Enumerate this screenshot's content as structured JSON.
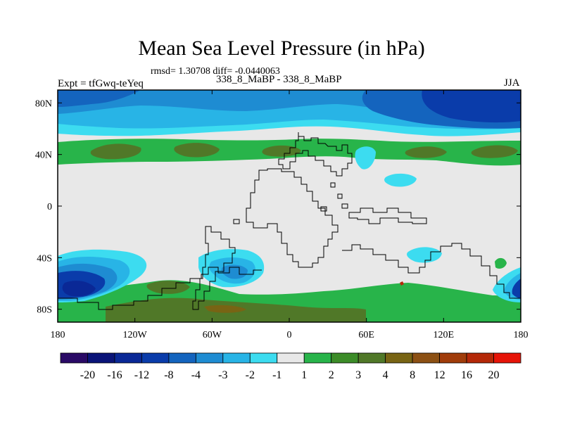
{
  "title": "Mean Sea Level Pressure (in hPa)",
  "stats": "rmsd= 1.30708 diff= -0.0440063",
  "experiment": "Expt = tfGwq-teYeq",
  "subtitle": "338_8_MaBP - 338_8_MaBP",
  "season": "JJA",
  "x_axis": {
    "range": [
      -180,
      180
    ],
    "ticks": [
      {
        "value": -180,
        "label": "180"
      },
      {
        "value": -120,
        "label": "120W"
      },
      {
        "value": -60,
        "label": "60W"
      },
      {
        "value": 0,
        "label": "0"
      },
      {
        "value": 60,
        "label": "60E"
      },
      {
        "value": 120,
        "label": "120E"
      },
      {
        "value": 180,
        "label": "180"
      }
    ]
  },
  "y_axis": {
    "range": [
      -90,
      90
    ],
    "ticks": [
      {
        "value": 80,
        "label": "80N"
      },
      {
        "value": 40,
        "label": "40N"
      },
      {
        "value": 0,
        "label": "0"
      },
      {
        "value": -40,
        "label": "40S"
      },
      {
        "value": -80,
        "label": "80S"
      }
    ]
  },
  "colorbar": {
    "colors": [
      "#2a0a66",
      "#0a1478",
      "#0a2896",
      "#0a3caa",
      "#1464be",
      "#1e8cd2",
      "#28b4e6",
      "#3cdcf0",
      "#e8e8e8",
      "#28b44a",
      "#3c8c28",
      "#507828",
      "#786414",
      "#8c5014",
      "#a03c0a",
      "#b42808",
      "#e61408"
    ],
    "labels": [
      "-20",
      "-16",
      "-12",
      "-8",
      "-4",
      "-3",
      "-2",
      "-1",
      "1",
      "2",
      "3",
      "4",
      "8",
      "12",
      "16",
      "20"
    ]
  },
  "field_colors": {
    "neutral": "#e8e8e8",
    "cyan": "#3cdcf0",
    "lightblue": "#28b4e6",
    "blue": "#1e8cd2",
    "midblue": "#1464be",
    "deepblue": "#0a3caa",
    "darkblue": "#0a2896",
    "green": "#28b44a",
    "darkgreen": "#507828",
    "olive": "#3c8c28",
    "brown": "#786414",
    "red": "#b42808"
  }
}
